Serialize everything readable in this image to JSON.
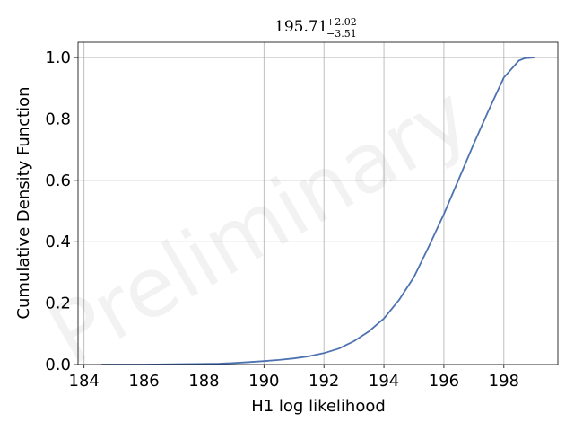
{
  "watermark": "Preliminary",
  "title": {
    "value": "195.71",
    "upper": "+2.02",
    "lower": "−3.51"
  },
  "chart_data": {
    "type": "line",
    "title": "195.71 (+2.02, −3.51)",
    "xlabel": "H1 log likelihood",
    "ylabel": "Cumulative Density Function",
    "xlim": [
      183.8,
      199.8
    ],
    "ylim": [
      0.0,
      1.05
    ],
    "xticks": [
      184,
      186,
      188,
      190,
      192,
      194,
      196,
      198
    ],
    "xtick_labels": [
      "184",
      "186",
      "188",
      "190",
      "192",
      "194",
      "196",
      "198"
    ],
    "yticks": [
      0.0,
      0.2,
      0.4,
      0.6,
      0.8,
      1.0
    ],
    "ytick_labels": [
      "0.0",
      "0.2",
      "0.4",
      "0.6",
      "0.8",
      "1.0"
    ],
    "grid": true,
    "color": "#4c72b0",
    "series": [
      {
        "x": [
          184.6,
          186.0,
          187.0,
          188.0,
          188.5,
          189.0,
          189.5,
          190.0,
          190.5,
          191.0,
          191.5,
          192.0,
          192.5,
          193.0,
          193.5,
          194.0,
          194.5,
          195.0,
          195.5,
          196.0,
          196.5,
          197.0,
          197.5,
          198.0,
          198.5,
          198.7,
          199.0
        ],
        "y": [
          0.0,
          0.0,
          0.001,
          0.002,
          0.003,
          0.005,
          0.008,
          0.011,
          0.015,
          0.02,
          0.027,
          0.037,
          0.052,
          0.076,
          0.108,
          0.15,
          0.21,
          0.285,
          0.385,
          0.49,
          0.605,
          0.72,
          0.83,
          0.935,
          0.99,
          0.998,
          1.0
        ]
      }
    ]
  }
}
